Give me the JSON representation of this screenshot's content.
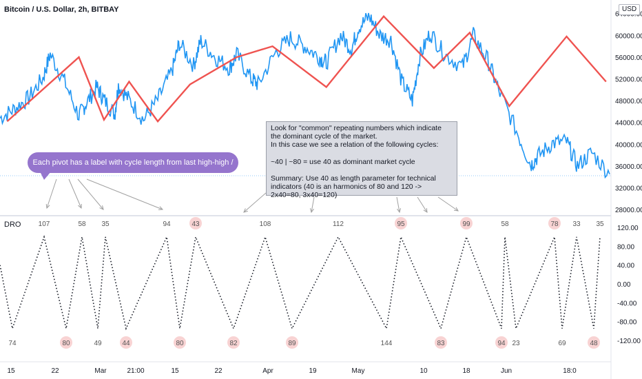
{
  "header": {
    "symbol_title": "Bitcoin / U.S. Dollar, 2h, BITBAY",
    "currency_badge": "USD",
    "indicator_name": "DRO"
  },
  "callout": {
    "text": "Each pivot has a label with cycle length from last high-high / low-low"
  },
  "note": {
    "line1": "Look for \"common\" repeating numbers which indicate the dominant cycle of the market.",
    "line2": "In this case we see a relation of the following cycles:",
    "line3": "~40 | ~80  = use 40 as dominant market cycle",
    "line4": "Summary: Use 40 as length parameter for technical indicators (40 is an harmonics of 80 and 120 -> 2x40=80, 3x40=120)"
  },
  "colors": {
    "price_line": "#2196f3",
    "zigzag": "#ef5350",
    "dro_line": "#131722",
    "highlight": "#f8d3d3",
    "callout_bg": "#9575cd",
    "axis_text": "#131722"
  },
  "chart_data": [
    {
      "type": "line",
      "title": "",
      "y_axis_labels": [
        "64000.00",
        "60000.00",
        "56000.00",
        "52000.00",
        "48000.00",
        "44000.00",
        "40000.00",
        "36000.00",
        "32000.00",
        "28000.00"
      ],
      "ylim": [
        27000,
        66500
      ],
      "series": [
        {
          "name": "",
          "x": [
            0,
            4,
            8,
            12,
            14,
            18,
            22,
            24,
            27,
            29,
            32,
            33,
            36,
            40,
            44,
            48,
            50,
            54,
            56,
            60,
            64,
            66,
            70,
            72,
            77,
            81,
            85,
            89,
            91,
            95,
            98,
            100,
            103,
            106,
            109,
            112,
            115,
            117,
            120,
            124,
            129,
            132,
            136,
            139,
            144,
            148,
            150,
            154,
            158,
            161,
            165,
            170
          ],
          "values": [
            44800,
            46500,
            48500,
            52200,
            56500,
            51500,
            45200,
            47500,
            50500,
            48200,
            45500,
            50800,
            48200,
            44500,
            48200,
            53500,
            58600,
            54500,
            59000,
            56000,
            54000,
            56500,
            52000,
            51000,
            57000,
            59500,
            58000,
            56000,
            55000,
            60000,
            57500,
            61500,
            63500,
            60000,
            59200,
            51500,
            48000,
            56000,
            60500,
            56500,
            54200,
            60000,
            55500,
            50000,
            42500,
            36200,
            37800,
            40200,
            40500,
            36000,
            38500,
            34500
          ]
        },
        {
          "name": "",
          "x": [
            2,
            22,
            29,
            36,
            44,
            53,
            66,
            76,
            91,
            107,
            121,
            131,
            142,
            158,
            169
          ],
          "values": [
            44200,
            56000,
            44500,
            51500,
            44200,
            51000,
            56000,
            58000,
            50500,
            63500,
            54000,
            60500,
            47000,
            59800,
            51500
          ]
        }
      ]
    },
    {
      "type": "line",
      "title": "",
      "y_axis_labels": [
        "120.00",
        "80.00",
        "40.00",
        "0.00",
        "-40.00",
        "-80.00",
        "-120.00"
      ],
      "ylim": [
        -135,
        135
      ],
      "x_tick_labels": [
        "15",
        "22",
        "Mar",
        "21:00",
        "15",
        "22",
        "Apr",
        "19",
        "May",
        "10",
        "18",
        "Jun",
        "18:0"
      ],
      "pivots": [
        {
          "value": -95,
          "label": "74",
          "highlight": false
        },
        {
          "value": 100,
          "label": "107",
          "highlight": false
        },
        {
          "value": -95,
          "label": "80",
          "highlight": true
        },
        {
          "value": 100,
          "label": "58",
          "highlight": false
        },
        {
          "value": -95,
          "label": "49",
          "highlight": false
        },
        {
          "value": 100,
          "label": "35",
          "highlight": false
        },
        {
          "value": -95,
          "label": "44",
          "highlight": true
        },
        {
          "value": 100,
          "label": "94",
          "highlight": false
        },
        {
          "value": -95,
          "label": "80",
          "highlight": true
        },
        {
          "value": 100,
          "label": "43",
          "highlight": true
        },
        {
          "value": -95,
          "label": "82",
          "highlight": true
        },
        {
          "value": 100,
          "label": "108",
          "highlight": false
        },
        {
          "value": -95,
          "label": "89",
          "highlight": true
        },
        {
          "value": 100,
          "label": "112",
          "highlight": false
        },
        {
          "value": -95,
          "label": "144",
          "highlight": false
        },
        {
          "value": 100,
          "label": "95",
          "highlight": true
        },
        {
          "value": -95,
          "label": "83",
          "highlight": true
        },
        {
          "value": 100,
          "label": "99",
          "highlight": true
        },
        {
          "value": -95,
          "label": "94",
          "highlight": true
        },
        {
          "value": 100,
          "label": "58",
          "highlight": false
        },
        {
          "value": -95,
          "label": "23",
          "highlight": false
        },
        {
          "value": 100,
          "label": "78",
          "highlight": true
        },
        {
          "value": -95,
          "label": "69",
          "highlight": false
        },
        {
          "value": 100,
          "label": "33",
          "highlight": false
        },
        {
          "value": -95,
          "label": "48",
          "highlight": true
        },
        {
          "value": 100,
          "label": "35",
          "highlight": false
        }
      ]
    }
  ]
}
